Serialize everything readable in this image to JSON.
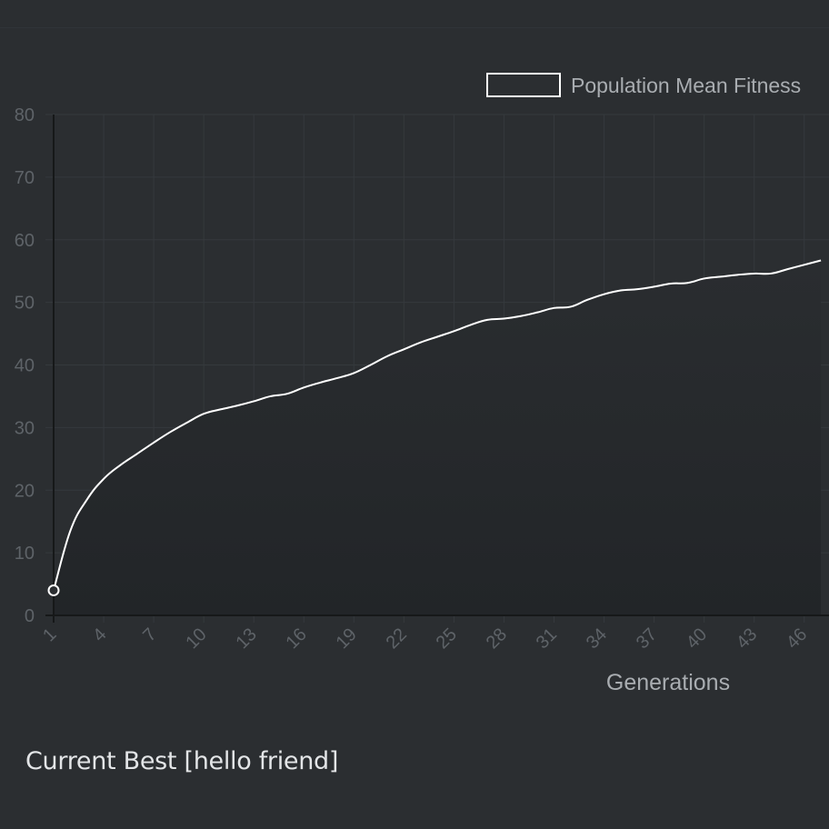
{
  "chart_data": {
    "type": "line",
    "title": "",
    "xlabel": "Generations",
    "ylabel": "",
    "ylim": [
      0,
      80
    ],
    "y_ticks": [
      "0",
      "10",
      "20",
      "30",
      "40",
      "50",
      "60",
      "70",
      "80"
    ],
    "x_tick_labels": [
      "1",
      "4",
      "7",
      "10",
      "13",
      "16",
      "19",
      "22",
      "25",
      "28",
      "31",
      "34",
      "37",
      "40",
      "43",
      "46"
    ],
    "legend": "top-right",
    "grid": true,
    "series": [
      {
        "name": "Population Mean Fitness",
        "x": [
          1,
          2,
          3,
          4,
          5,
          6,
          7,
          8,
          9,
          10,
          11,
          12,
          13,
          14,
          15,
          16,
          17,
          18,
          19,
          20,
          21,
          22,
          23,
          24,
          25,
          26,
          27,
          28,
          29,
          30,
          31,
          32,
          33,
          34,
          35,
          36,
          37,
          38,
          39,
          40,
          41,
          42,
          43,
          44,
          45,
          46,
          47
        ],
        "values": [
          4.0,
          13.5,
          18.5,
          21.8,
          24.0,
          25.8,
          27.6,
          29.3,
          30.8,
          32.2,
          32.9,
          33.5,
          34.2,
          35.0,
          35.4,
          36.4,
          37.2,
          37.9,
          38.7,
          40.0,
          41.4,
          42.5,
          43.6,
          44.5,
          45.4,
          46.4,
          47.2,
          47.4,
          47.8,
          48.4,
          49.1,
          49.3,
          50.4,
          51.3,
          51.9,
          52.1,
          52.5,
          53.0,
          53.1,
          53.8,
          54.1,
          54.4,
          54.6,
          54.6,
          55.3,
          56.0,
          56.7
        ],
        "color": "#ffffff"
      }
    ]
  },
  "footer": {
    "current_best": "Current Best [hello friend]"
  },
  "colors": {
    "background": "#2b2e31",
    "plot_fill_bottom": "#222528",
    "grid": "#35393d",
    "axis": "#161819",
    "line": "#ffffff"
  }
}
